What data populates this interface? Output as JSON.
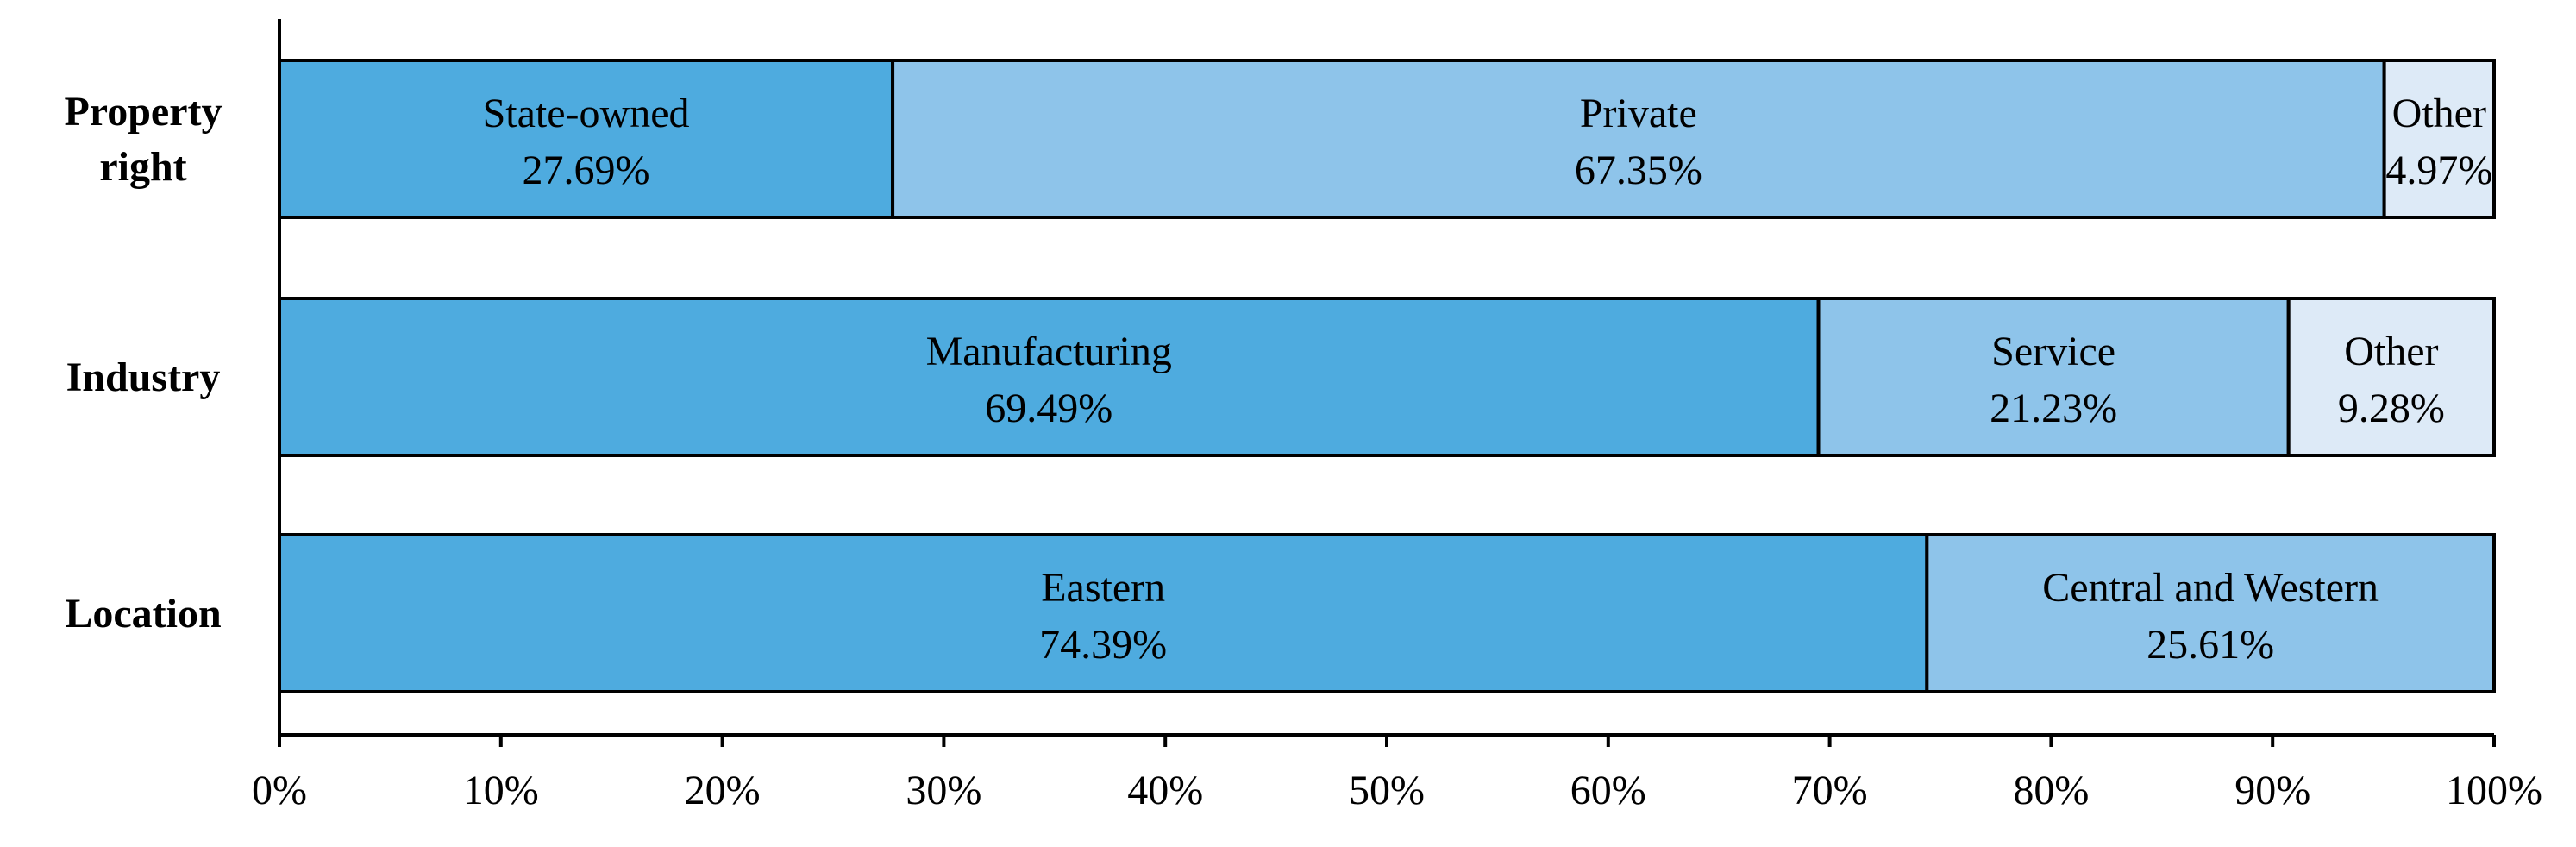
{
  "chart_data": {
    "type": "bar",
    "orientation": "horizontal",
    "stacked": true,
    "normalized": true,
    "title": "",
    "xlabel": "",
    "ylabel": "",
    "xlim": [
      0,
      100
    ],
    "x_ticks": [
      "0%",
      "10%",
      "20%",
      "30%",
      "40%",
      "50%",
      "60%",
      "70%",
      "80%",
      "90%",
      "100%"
    ],
    "grid": false,
    "legend": "none",
    "categories": [
      {
        "label_lines": [
          "Property",
          "right"
        ],
        "segments": [
          {
            "name": "State-owned",
            "value": 27.69,
            "label": "27.69%",
            "color": "#4eabdf"
          },
          {
            "name": "Private",
            "value": 67.35,
            "label": "67.35%",
            "color": "#8ec4ea"
          },
          {
            "name": "Other",
            "value": 4.97,
            "label": "4.97%",
            "color": "#ddeaf7"
          }
        ]
      },
      {
        "label_lines": [
          "Industry"
        ],
        "segments": [
          {
            "name": "Manufacturing",
            "value": 69.49,
            "label": "69.49%",
            "color": "#4eabdf"
          },
          {
            "name": "Service",
            "value": 21.23,
            "label": "21.23%",
            "color": "#8ec4ea"
          },
          {
            "name": "Other",
            "value": 9.28,
            "label": "9.28%",
            "color": "#ddeaf7"
          }
        ]
      },
      {
        "label_lines": [
          "Location"
        ],
        "segments": [
          {
            "name": "Eastern",
            "value": 74.39,
            "label": "74.39%",
            "color": "#4eabdf"
          },
          {
            "name": "Central and Western",
            "value": 25.61,
            "label": "25.61%",
            "color": "#8ec4ea"
          }
        ]
      }
    ]
  }
}
